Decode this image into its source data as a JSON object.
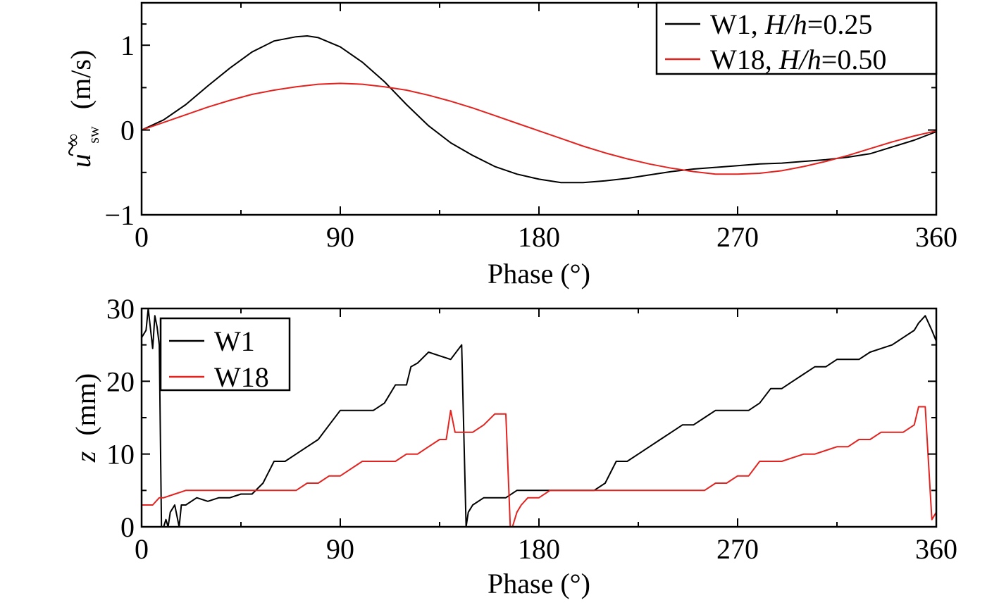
{
  "colors": {
    "W1": "#000000",
    "W18": "#e3231f"
  },
  "chart_data": [
    {
      "type": "line",
      "xlabel": "Phase (°)",
      "ylabel_parts": {
        "symbol": "u",
        "sup": "∞",
        "sub": "sw",
        "unit": "(m/s)"
      },
      "xlim": [
        0,
        360
      ],
      "ylim": [
        -1,
        1.5
      ],
      "x_ticks": [
        0,
        90,
        180,
        270,
        360
      ],
      "x_tick_labels": [
        "0",
        "90",
        "180",
        "270",
        "360"
      ],
      "y_ticks": [
        -1,
        0,
        1
      ],
      "y_tick_labels": [
        "−1",
        "0",
        "1"
      ],
      "legend_position": "top-right",
      "legend": [
        {
          "series": "W1",
          "prefix": "W1, ",
          "italic": "H/h",
          "suffix": "=0.25"
        },
        {
          "series": "W18",
          "prefix": "W18, ",
          "italic": "H/h",
          "suffix": "=0.50"
        }
      ],
      "series": [
        {
          "name": "W1",
          "color": "#000000",
          "x": [
            0,
            10,
            20,
            30,
            40,
            50,
            60,
            70,
            75,
            80,
            90,
            100,
            110,
            120,
            130,
            140,
            150,
            160,
            170,
            180,
            190,
            200,
            210,
            220,
            230,
            240,
            250,
            260,
            270,
            280,
            290,
            300,
            310,
            320,
            330,
            340,
            350,
            360
          ],
          "y": [
            0.0,
            0.12,
            0.3,
            0.52,
            0.73,
            0.92,
            1.05,
            1.1,
            1.11,
            1.09,
            0.98,
            0.8,
            0.57,
            0.3,
            0.05,
            -0.15,
            -0.3,
            -0.43,
            -0.52,
            -0.58,
            -0.62,
            -0.62,
            -0.6,
            -0.57,
            -0.53,
            -0.49,
            -0.46,
            -0.44,
            -0.42,
            -0.4,
            -0.39,
            -0.37,
            -0.35,
            -0.32,
            -0.28,
            -0.2,
            -0.12,
            -0.02
          ]
        },
        {
          "name": "W18",
          "color": "#e3231f",
          "x": [
            0,
            10,
            20,
            30,
            40,
            50,
            60,
            70,
            80,
            90,
            100,
            110,
            120,
            130,
            140,
            150,
            160,
            170,
            180,
            190,
            200,
            210,
            220,
            230,
            240,
            250,
            260,
            270,
            280,
            290,
            300,
            310,
            320,
            330,
            340,
            350,
            360
          ],
          "y": [
            0.0,
            0.09,
            0.18,
            0.27,
            0.35,
            0.42,
            0.47,
            0.51,
            0.54,
            0.55,
            0.54,
            0.51,
            0.47,
            0.41,
            0.34,
            0.26,
            0.17,
            0.08,
            -0.01,
            -0.1,
            -0.19,
            -0.27,
            -0.34,
            -0.4,
            -0.45,
            -0.49,
            -0.52,
            -0.52,
            -0.51,
            -0.48,
            -0.43,
            -0.37,
            -0.3,
            -0.22,
            -0.14,
            -0.07,
            -0.01
          ]
        }
      ]
    },
    {
      "type": "line",
      "xlabel": "Phase (°)",
      "ylabel_parts": {
        "symbol": "z",
        "unit": "(mm)"
      },
      "xlim": [
        0,
        360
      ],
      "ylim": [
        0,
        30
      ],
      "x_ticks": [
        0,
        90,
        180,
        270,
        360
      ],
      "x_tick_labels": [
        "0",
        "90",
        "180",
        "270",
        "360"
      ],
      "y_ticks": [
        0,
        10,
        20,
        30
      ],
      "y_tick_labels": [
        "0",
        "10",
        "20",
        "30"
      ],
      "legend_position": "top-left",
      "legend": [
        {
          "series": "W1",
          "prefix": "W1",
          "italic": "",
          "suffix": ""
        },
        {
          "series": "W18",
          "prefix": "W18",
          "italic": "",
          "suffix": ""
        }
      ],
      "series": [
        {
          "name": "W1",
          "color": "#000000",
          "x": [
            0,
            2,
            3,
            5,
            6,
            7,
            8,
            9,
            10,
            11,
            12,
            13,
            15,
            17,
            18,
            20,
            25,
            30,
            35,
            40,
            45,
            50,
            55,
            60,
            65,
            70,
            75,
            80,
            85,
            90,
            95,
            100,
            105,
            110,
            115,
            120,
            122,
            125,
            130,
            135,
            140,
            145,
            147,
            148,
            150,
            155,
            160,
            165,
            170,
            180,
            190,
            195,
            200,
            205,
            210,
            215,
            220,
            225,
            230,
            235,
            240,
            245,
            250,
            255,
            260,
            265,
            270,
            275,
            280,
            285,
            290,
            295,
            300,
            305,
            310,
            315,
            320,
            325,
            330,
            335,
            340,
            345,
            350,
            352,
            355,
            358,
            360
          ],
          "y": [
            26,
            27,
            30,
            24.5,
            29,
            27.5,
            25,
            0,
            0,
            1,
            0,
            2,
            3,
            0,
            3,
            3,
            4,
            3.5,
            4,
            4,
            4.5,
            4.5,
            6,
            9,
            9,
            10,
            11,
            12,
            14,
            16,
            16,
            16,
            16,
            17,
            19.5,
            19.5,
            22,
            22.5,
            24,
            23.5,
            23,
            25,
            0,
            2,
            3,
            4,
            4,
            4,
            5,
            5,
            5,
            5,
            5,
            5,
            6,
            9,
            9,
            10,
            11,
            12,
            13,
            14,
            14,
            15,
            16,
            16,
            16,
            16,
            17,
            19,
            19,
            20,
            21,
            22,
            22,
            23,
            23,
            23,
            24,
            24.5,
            25,
            26,
            27,
            28,
            29,
            27,
            25.5
          ]
        },
        {
          "name": "W18",
          "color": "#e3231f",
          "x": [
            0,
            5,
            8,
            10,
            15,
            20,
            25,
            30,
            35,
            40,
            45,
            50,
            55,
            60,
            65,
            70,
            75,
            80,
            85,
            90,
            95,
            100,
            105,
            110,
            115,
            120,
            125,
            130,
            135,
            138,
            140,
            142,
            145,
            150,
            155,
            160,
            165,
            167,
            168,
            170,
            172,
            175,
            180,
            185,
            190,
            195,
            200,
            205,
            210,
            215,
            220,
            225,
            230,
            235,
            240,
            245,
            250,
            255,
            260,
            265,
            270,
            275,
            280,
            285,
            290,
            295,
            300,
            305,
            310,
            315,
            320,
            325,
            330,
            335,
            340,
            345,
            350,
            352,
            353,
            355,
            358,
            360
          ],
          "y": [
            3,
            3,
            4,
            4,
            4.5,
            5,
            5,
            5,
            5,
            5,
            5,
            5,
            5,
            5,
            5,
            5,
            6,
            6,
            7,
            7,
            8,
            9,
            9,
            9,
            9,
            10,
            10,
            11,
            12,
            12,
            16,
            13,
            13,
            13,
            14,
            15.5,
            15.5,
            0,
            0,
            2,
            3,
            4,
            4,
            5,
            5,
            5,
            5,
            5,
            5,
            5,
            5,
            5,
            5,
            5,
            5,
            5,
            5,
            5,
            6,
            6,
            7,
            7,
            9,
            9,
            9,
            9.5,
            10,
            10,
            10.5,
            11,
            11,
            12,
            12,
            13,
            13,
            13,
            14,
            16.5,
            16.5,
            16.5,
            1,
            2
          ]
        }
      ]
    }
  ]
}
